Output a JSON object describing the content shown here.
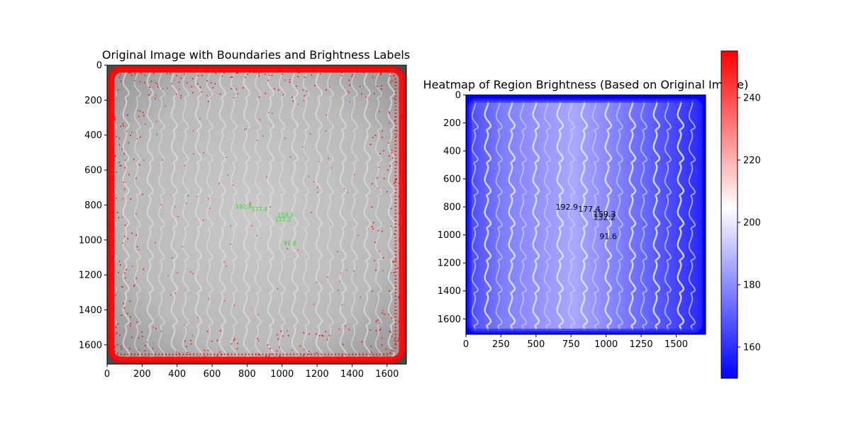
{
  "chart_data": [
    {
      "type": "image",
      "title": "Original Image with Boundaries and Brightness Labels",
      "xlim": [
        0,
        1710
      ],
      "ylim": [
        1710,
        0
      ],
      "x_ticks": [
        0,
        200,
        400,
        600,
        800,
        1000,
        1200,
        1400,
        1600
      ],
      "y_ticks": [
        0,
        200,
        400,
        600,
        800,
        1000,
        1200,
        1400,
        1600
      ],
      "boundary_color": "#ff0000",
      "labels": [
        {
          "text": "192.9",
          "x": 780,
          "y": 820
        },
        {
          "text": "177.4",
          "x": 870,
          "y": 835
        },
        {
          "text": "159.3",
          "x": 1020,
          "y": 870
        },
        {
          "text": "132.2",
          "x": 1005,
          "y": 893
        },
        {
          "text": "91.6",
          "x": 1045,
          "y": 1030
        }
      ],
      "label_color": "#22e022"
    },
    {
      "type": "heatmap",
      "title": "Heatmap of Region Brightness (Based on Original Image)",
      "xlim": [
        0,
        1710
      ],
      "ylim": [
        1710,
        0
      ],
      "x_ticks": [
        0,
        250,
        500,
        750,
        1000,
        1250,
        1500
      ],
      "y_ticks": [
        0,
        200,
        400,
        600,
        800,
        1000,
        1200,
        1400,
        1600
      ],
      "colormap": "bwr",
      "colorbar": {
        "vmin": 150,
        "vmax": 255,
        "ticks": [
          160,
          180,
          200,
          220,
          240
        ],
        "colors": [
          "#0000ff",
          "#ffffff",
          "#ff0000"
        ]
      },
      "labels": [
        {
          "text": "192.9",
          "x": 720,
          "y": 820
        },
        {
          "text": "177.4",
          "x": 880,
          "y": 835
        },
        {
          "text": "159.3",
          "x": 990,
          "y": 870
        },
        {
          "text": "132.2",
          "x": 988,
          "y": 893
        },
        {
          "text": "91.6",
          "x": 1015,
          "y": 1030
        }
      ]
    }
  ]
}
